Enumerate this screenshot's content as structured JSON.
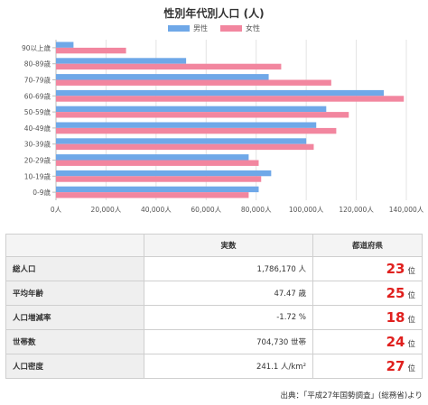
{
  "chart_data": {
    "type": "bar",
    "orientation": "horizontal",
    "title": "性別年代別人口 (人)",
    "categories": [
      "90以上歳",
      "80-89歳",
      "70-79歳",
      "60-69歳",
      "50-59歳",
      "40-49歳",
      "30-39歳",
      "20-29歳",
      "10-19歳",
      "0-9歳"
    ],
    "series": [
      {
        "name": "男性",
        "color": "#6fa8e8",
        "values": [
          7000,
          52000,
          85000,
          131000,
          108000,
          104000,
          100000,
          77000,
          86000,
          81000
        ]
      },
      {
        "name": "女性",
        "color": "#f2869f",
        "values": [
          28000,
          90000,
          110000,
          139000,
          117000,
          112000,
          103000,
          81000,
          82000,
          77000
        ]
      }
    ],
    "xlim": [
      0,
      140000
    ],
    "xticks": [
      0,
      20000,
      40000,
      60000,
      80000,
      100000,
      120000,
      140000
    ],
    "xtick_labels": [
      "0人",
      "20,000人",
      "40,000人",
      "60,000人",
      "80,000人",
      "100,000人",
      "120,000人",
      "140,000人"
    ],
    "legend": "top-center",
    "grid": true
  },
  "table": {
    "headers": [
      "",
      "実数",
      "都道府県"
    ],
    "rows": [
      {
        "label": "総人口",
        "value": "1,786,170 人",
        "rank": "23",
        "rank_unit": "位"
      },
      {
        "label": "平均年齢",
        "value": "47.47 歳",
        "rank": "25",
        "rank_unit": "位"
      },
      {
        "label": "人口増減率",
        "value": "-1.72 %",
        "rank": "18",
        "rank_unit": "位"
      },
      {
        "label": "世帯数",
        "value": "704,730 世帯",
        "rank": "24",
        "rank_unit": "位"
      },
      {
        "label": "人口密度",
        "value": "241.1 人/km²",
        "rank": "27",
        "rank_unit": "位"
      }
    ]
  },
  "source": "出典：「平成27年国勢調査」(総務省)より"
}
